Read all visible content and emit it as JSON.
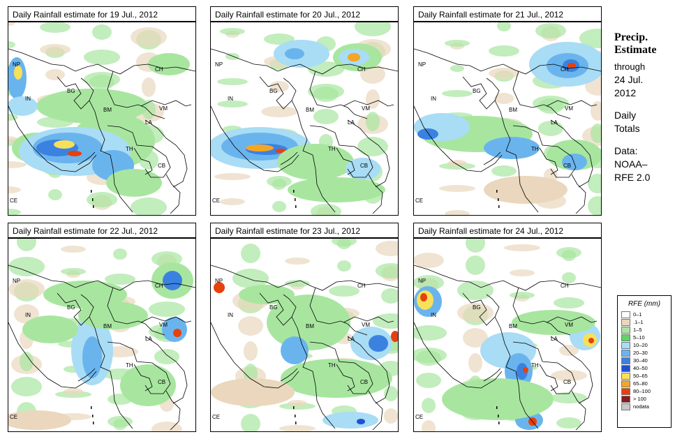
{
  "panels": [
    {
      "title": "Daily Rainfall estimate for  19 Jul., 2012",
      "intensity": "heavy-bay"
    },
    {
      "title": "Daily Rainfall estimate for  20 Jul., 2012",
      "intensity": "bay-band"
    },
    {
      "title": "Daily Rainfall estimate for  21 Jul., 2012",
      "intensity": "china"
    },
    {
      "title": "Daily Rainfall estimate for  22 Jul., 2012",
      "intensity": "east"
    },
    {
      "title": "Daily Rainfall estimate for  23 Jul., 2012",
      "intensity": "scattered"
    },
    {
      "title": "Daily Rainfall estimate for  24 Jul., 2012",
      "intensity": "west-east"
    }
  ],
  "region_labels": {
    "np": "NP",
    "in": "IN",
    "bg": "BG",
    "bm": "BM",
    "ch": "CH",
    "vm": "VM",
    "la": "LA",
    "th": "TH",
    "cb": "CB",
    "ce": "CE"
  },
  "side": {
    "heading_line1": "Precip.",
    "heading_line2": "Estimate",
    "through": "through",
    "date_line1": "24 Jul.",
    "date_line2": "2012",
    "daily_line1": "Daily",
    "daily_line2": "Totals",
    "data_line1": "Data:",
    "data_line2": "NOAA–",
    "data_line3": "RFE 2.0"
  },
  "legend": {
    "title": "RFE (mm)",
    "items": [
      {
        "label": "0–1",
        "color": "#ffffff"
      },
      {
        "label": ".1–1",
        "color": "#ead7bd"
      },
      {
        "label": "1–5",
        "color": "#a8e6a0"
      },
      {
        "label": "5–10",
        "color": "#5fd36a"
      },
      {
        "label": "10–20",
        "color": "#a9dcf5"
      },
      {
        "label": "20–30",
        "color": "#6ab4ee"
      },
      {
        "label": "30–40",
        "color": "#3b82e0"
      },
      {
        "label": "40–50",
        "color": "#1f4fd6"
      },
      {
        "label": "50–65",
        "color": "#f7e05a"
      },
      {
        "label": "65–80",
        "color": "#f5a623"
      },
      {
        "label": "80–100",
        "color": "#e8400c"
      },
      {
        "label": "> 100",
        "color": "#8b1a1a"
      },
      {
        "label": "nodata",
        "color": "#c8c8c8"
      }
    ]
  }
}
